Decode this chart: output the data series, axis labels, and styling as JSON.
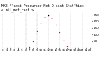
{
  "title": "MKE F'cast Precursor Met D'cast Stat'tics",
  "subtitle": "< mil_met_cast >",
  "hours": [
    0,
    1,
    2,
    3,
    4,
    5,
    6,
    7,
    8,
    9,
    10,
    11,
    12,
    13,
    14,
    15,
    16,
    17,
    18,
    19,
    20,
    21,
    22,
    23
  ],
  "solar_avg": [
    0,
    0,
    0,
    0,
    0,
    0,
    0,
    3,
    45,
    125,
    185,
    235,
    248,
    225,
    175,
    115,
    58,
    12,
    1,
    0,
    0,
    0,
    0,
    0
  ],
  "black_hours": [
    11,
    12,
    13
  ],
  "dot_color_main": "#ff0000",
  "dot_color_black": "#000000",
  "bg_color": "#ffffff",
  "grid_color": "#888888",
  "grid_positions": [
    0,
    3,
    6,
    9,
    12,
    15,
    18,
    21
  ],
  "ylim": [
    0,
    270
  ],
  "yticks": [
    50,
    100,
    150,
    200,
    250
  ],
  "xlim": [
    -0.5,
    23.5
  ],
  "title_fontsize": 3.5,
  "tick_fontsize": 3.0
}
